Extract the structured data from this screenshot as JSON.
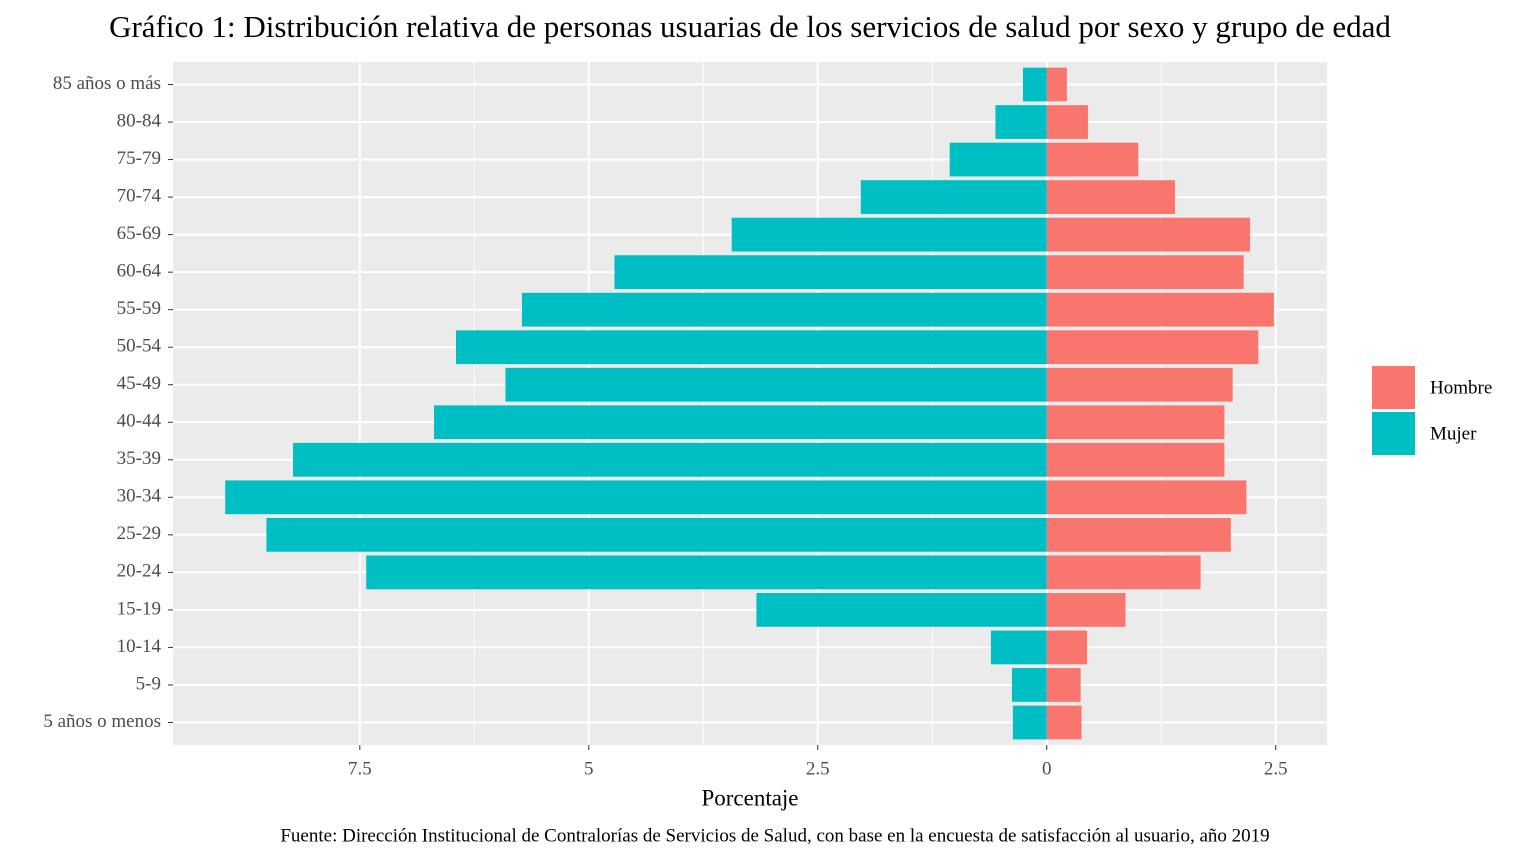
{
  "chart_data": {
    "type": "pyramid",
    "title": "Gráfico 1: Distribución relativa de personas usuarias de los servicios de salud por sexo y grupo de edad",
    "x_label": "Porcentaje",
    "caption": "Fuente: Dirección Institucional de Contralorías de Servicios de Salud, con base en la encuesta de satisfacción al usuario, año 2019",
    "categories": [
      "5 años o menos",
      "5-9",
      "10-14",
      "15-19",
      "20-24",
      "25-29",
      "30-34",
      "35-39",
      "40-44",
      "45-49",
      "50-54",
      "55-59",
      "60-64",
      "65-69",
      "70-74",
      "75-79",
      "80-84",
      "85 años o más"
    ],
    "series": [
      {
        "name": "Hombre",
        "color": "#F8766D",
        "values": [
          0.38,
          0.37,
          0.44,
          0.86,
          1.68,
          2.01,
          2.18,
          1.94,
          1.94,
          2.03,
          2.31,
          2.48,
          2.15,
          2.22,
          1.4,
          1.0,
          0.45,
          0.22
        ]
      },
      {
        "name": "Mujer",
        "color": "#00BFC4",
        "values": [
          -0.37,
          -0.38,
          -0.61,
          -3.17,
          -7.43,
          -8.52,
          -8.97,
          -8.23,
          -6.69,
          -5.91,
          -6.45,
          -5.73,
          -4.72,
          -3.44,
          -2.03,
          -1.06,
          -0.56,
          -0.26
        ]
      }
    ],
    "xlim": [
      -9.54,
      3.06
    ],
    "xticks": [
      {
        "value": -7.5,
        "label": "7.5"
      },
      {
        "value": -5,
        "label": "5"
      },
      {
        "value": -2.5,
        "label": "2.5"
      },
      0,
      2.5
    ],
    "grid": true,
    "legend": "right"
  }
}
